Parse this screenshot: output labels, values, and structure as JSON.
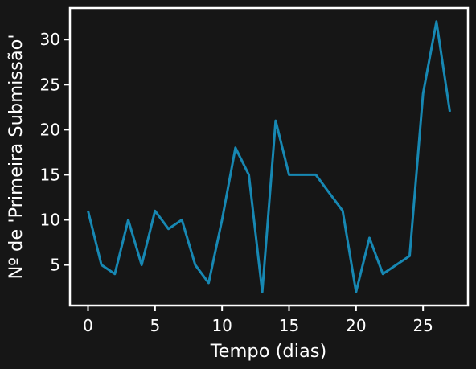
{
  "chart_data": {
    "type": "line",
    "title": "",
    "xlabel": "Tempo (dias)",
    "ylabel": "Nº de 'Primeira Submissão'",
    "xlim": [
      -1.35,
      28.35
    ],
    "ylim": [
      0.5,
      33.5
    ],
    "xticks": [
      0,
      5,
      10,
      15,
      20,
      25
    ],
    "yticks": [
      5,
      10,
      15,
      20,
      25,
      30
    ],
    "grid": false,
    "colors": {
      "background": "#161616",
      "axes": "#ffffff",
      "line": "#1788b3"
    },
    "series": [
      {
        "x": [
          0,
          1,
          2,
          3,
          4,
          5,
          6,
          7,
          8,
          9,
          10,
          11,
          12,
          13,
          14,
          15,
          16,
          17,
          18,
          19,
          20,
          21,
          22,
          23,
          24,
          25,
          26,
          27
        ],
        "values": [
          11,
          5,
          4,
          10,
          5,
          11,
          9,
          10,
          5,
          3,
          10,
          18,
          15,
          2,
          21,
          15,
          15,
          15,
          13,
          11,
          2,
          8,
          4,
          5,
          6,
          24,
          32,
          22
        ]
      }
    ]
  }
}
